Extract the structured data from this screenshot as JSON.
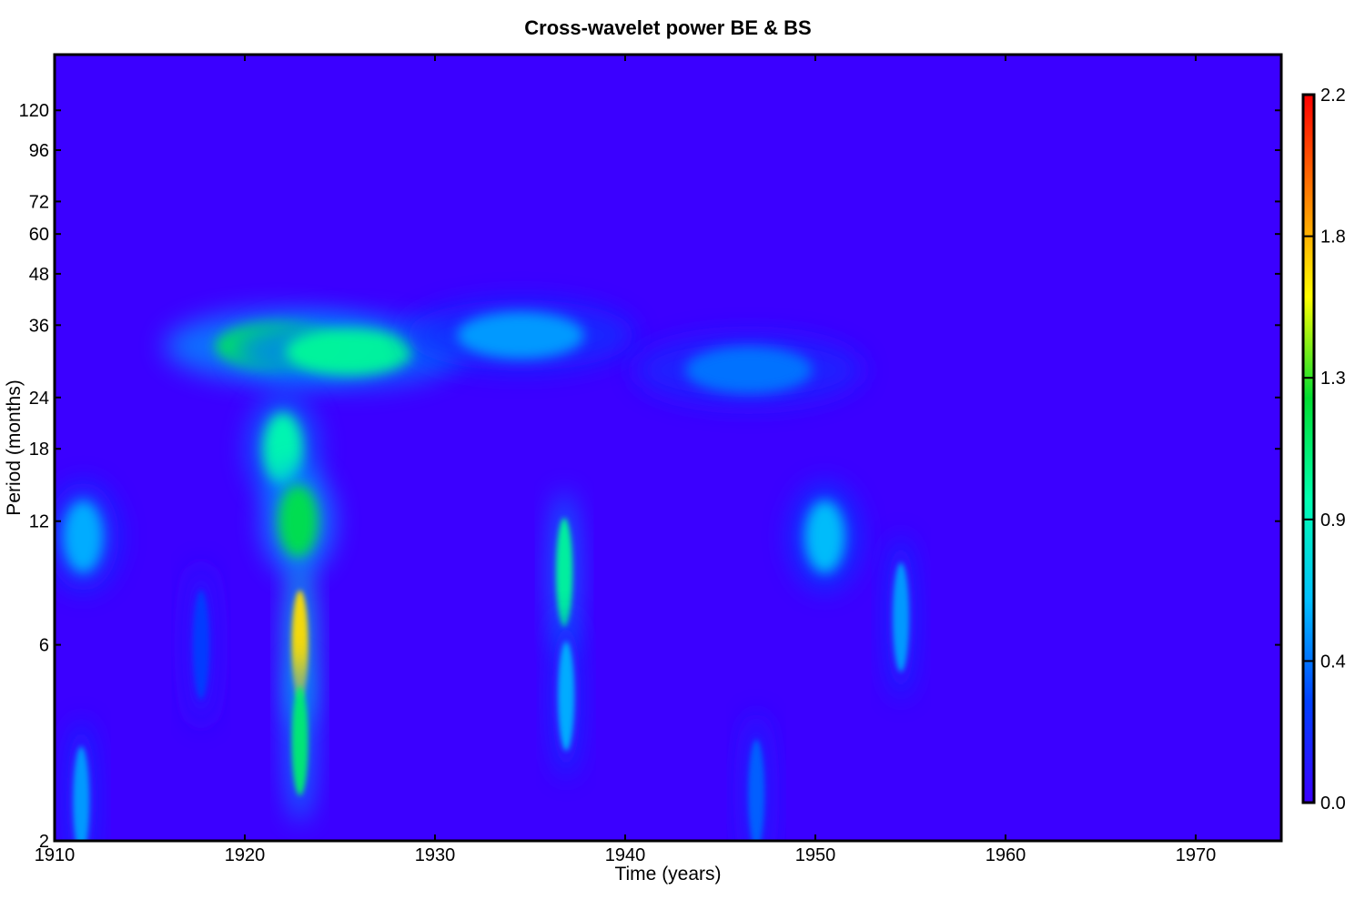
{
  "chart_data": {
    "type": "heatmap",
    "title": "Cross-wavelet power BE & BS",
    "xlabel": "Time (years)",
    "ylabel": "Period (months)",
    "xlim": [
      1910,
      1974.5
    ],
    "ylim": [
      2,
      164
    ],
    "yscale": "log",
    "x_ticks": [
      1910,
      1920,
      1930,
      1940,
      1950,
      1960,
      1970
    ],
    "y_ticks": [
      2,
      6,
      12,
      18,
      24,
      36,
      48,
      60,
      72,
      96,
      120
    ],
    "colorbar": {
      "min": 0.0,
      "max": 2.2,
      "ticks": [
        "0.0",
        "0.4",
        "0.9",
        "1.3",
        "1.8",
        "2.2"
      ],
      "colormap": [
        "#3b00ff",
        "#0040ff",
        "#00c0ff",
        "#00ffb0",
        "#00dd30",
        "#ffff00",
        "#ff8000",
        "#ff0000"
      ]
    },
    "background_power": 0.05,
    "features": [
      {
        "year": 1911.5,
        "period": 11,
        "power": 0.6
      },
      {
        "year": 1911.4,
        "period": 2.5,
        "power": 0.55
      },
      {
        "year": 1917.7,
        "period": 6,
        "power": 0.3
      },
      {
        "year": 1921.8,
        "period": 32,
        "power": 1.15
      },
      {
        "year": 1925.5,
        "period": 31,
        "power": 1.0
      },
      {
        "year": 1922.0,
        "period": 18,
        "power": 0.95
      },
      {
        "year": 1922.8,
        "period": 12,
        "power": 1.2
      },
      {
        "year": 1922.9,
        "period": 6,
        "power": 1.65
      },
      {
        "year": 1922.9,
        "period": 3.5,
        "power": 1.1
      },
      {
        "year": 1934.5,
        "period": 34,
        "power": 0.55
      },
      {
        "year": 1936.8,
        "period": 9,
        "power": 1.0
      },
      {
        "year": 1936.9,
        "period": 4.5,
        "power": 0.6
      },
      {
        "year": 1946.5,
        "period": 28,
        "power": 0.45
      },
      {
        "year": 1950.5,
        "period": 11,
        "power": 0.65
      },
      {
        "year": 1946.9,
        "period": 2.6,
        "power": 0.4
      },
      {
        "year": 1954.5,
        "period": 7,
        "power": 0.55
      }
    ]
  }
}
